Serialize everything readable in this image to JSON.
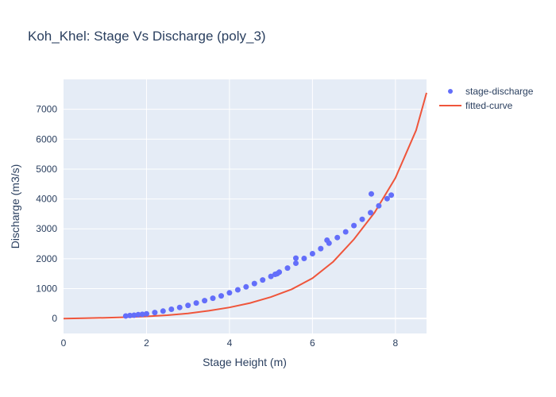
{
  "chart_data": {
    "type": "scatter",
    "title": "Koh_Khel: Stage Vs Discharge (poly_3)",
    "xlabel": "Stage Height (m)",
    "ylabel": "Discharge (m3/s)",
    "xlim": [
      0,
      8.75
    ],
    "ylim": [
      -500,
      8000
    ],
    "xticks": [
      0,
      2,
      4,
      6,
      8
    ],
    "yticks": [
      0,
      1000,
      2000,
      3000,
      4000,
      5000,
      6000,
      7000
    ],
    "grid": true,
    "legend_position": "top-right",
    "background": "#e5ecf6",
    "series": [
      {
        "name": "stage-discharge",
        "mode": "markers",
        "color": "#636efa",
        "x": [
          1.5,
          1.6,
          1.7,
          1.8,
          1.9,
          2.0,
          2.2,
          2.4,
          2.6,
          2.8,
          3.0,
          3.2,
          3.4,
          3.6,
          3.8,
          4.0,
          4.2,
          4.4,
          4.6,
          4.8,
          5.0,
          5.1,
          5.2,
          5.4,
          5.6,
          5.8,
          6.0,
          6.2,
          6.4,
          6.6,
          6.8,
          7.0,
          7.2,
          7.4,
          7.6,
          7.8,
          7.9,
          5.6,
          7.42,
          5.15,
          6.35
        ],
        "y": [
          85,
          100,
          110,
          130,
          140,
          160,
          200,
          250,
          310,
          370,
          440,
          520,
          600,
          680,
          760,
          860,
          960,
          1060,
          1170,
          1290,
          1410,
          1480,
          1550,
          1690,
          1850,
          2010,
          2170,
          2340,
          2520,
          2710,
          2900,
          3110,
          3320,
          3540,
          3770,
          4010,
          4130,
          2020,
          4170,
          1500,
          2620
        ]
      },
      {
        "name": "fitted-curve",
        "mode": "lines",
        "color": "#ef553b",
        "x": [
          0,
          0.5,
          1.0,
          1.5,
          2.0,
          2.5,
          3.0,
          3.5,
          4.0,
          4.5,
          5.0,
          5.5,
          6.0,
          6.5,
          7.0,
          7.5,
          8.0,
          8.5,
          8.75
        ],
        "y": [
          0,
          10,
          25,
          45,
          70,
          110,
          170,
          260,
          370,
          520,
          720,
          980,
          1350,
          1900,
          2650,
          3550,
          4700,
          6300,
          7550
        ]
      }
    ]
  }
}
